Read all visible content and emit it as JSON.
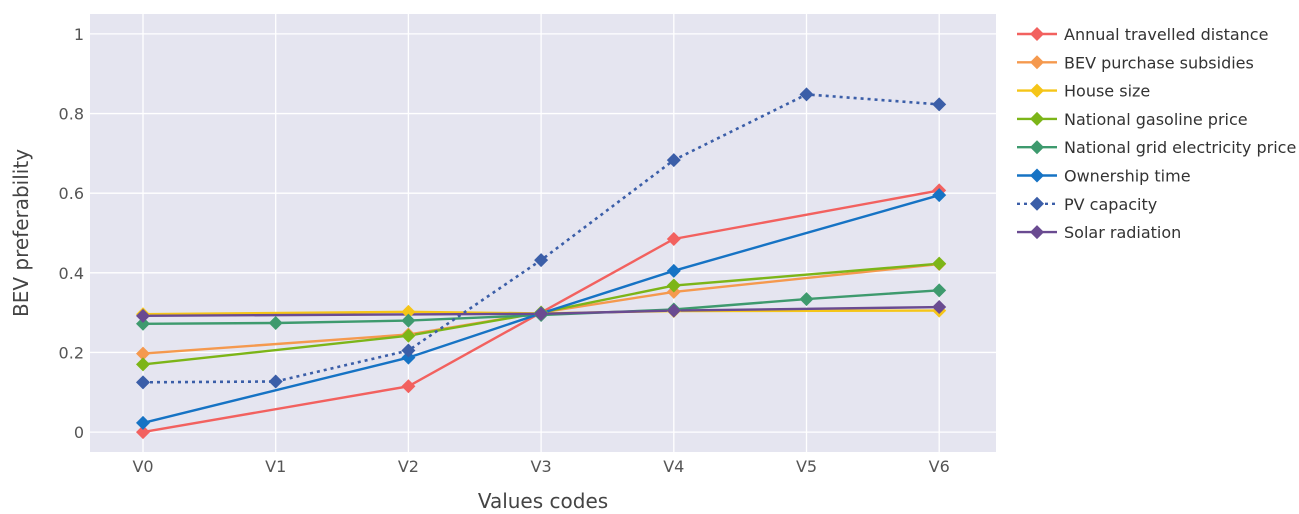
{
  "chart_data": {
    "type": "line",
    "xlabel": "Values codes",
    "ylabel": "BEV preferability",
    "categories": [
      "V0",
      "V1",
      "V2",
      "V3",
      "V4",
      "V5",
      "V6"
    ],
    "ylim": [
      -0.05,
      1.05
    ],
    "yticks": [
      0,
      0.2,
      0.4,
      0.6,
      0.8,
      1
    ],
    "ytick_labels": [
      "0",
      "0.2",
      "0.4",
      "0.6",
      "0.8",
      "1"
    ],
    "grid": true,
    "legend_position": "right",
    "series": [
      {
        "name": "Annual travelled distance",
        "color": "#f2615f",
        "dashed": false,
        "points": [
          [
            0,
            0.0
          ],
          [
            2,
            0.115
          ],
          [
            3,
            0.3
          ],
          [
            4,
            0.485
          ],
          [
            6,
            0.607
          ]
        ]
      },
      {
        "name": "BEV purchase subsidies",
        "color": "#f5994e",
        "dashed": false,
        "points": [
          [
            0,
            0.197
          ],
          [
            2,
            0.245
          ],
          [
            3,
            0.3
          ],
          [
            4,
            0.352
          ],
          [
            6,
            0.422
          ]
        ]
      },
      {
        "name": "House size",
        "color": "#f5c518",
        "dashed": false,
        "points": [
          [
            0,
            0.296
          ],
          [
            2,
            0.302
          ],
          [
            3,
            0.298
          ],
          [
            4,
            0.304
          ],
          [
            6,
            0.305
          ]
        ]
      },
      {
        "name": "National gasoline price",
        "color": "#7cb518",
        "dashed": false,
        "points": [
          [
            0,
            0.17
          ],
          [
            2,
            0.242
          ],
          [
            3,
            0.3
          ],
          [
            4,
            0.368
          ],
          [
            6,
            0.423
          ]
        ]
      },
      {
        "name": "National grid electricity price",
        "color": "#3e9a6e",
        "dashed": false,
        "points": [
          [
            0,
            0.272
          ],
          [
            1,
            0.274
          ],
          [
            2,
            0.28
          ],
          [
            3,
            0.294
          ],
          [
            4,
            0.308
          ],
          [
            5,
            0.334
          ],
          [
            6,
            0.356
          ]
        ]
      },
      {
        "name": "Ownership time",
        "color": "#1673c4",
        "dashed": false,
        "points": [
          [
            0,
            0.023
          ],
          [
            2,
            0.187
          ],
          [
            3,
            0.298
          ],
          [
            4,
            0.405
          ],
          [
            6,
            0.595
          ]
        ]
      },
      {
        "name": "PV capacity",
        "color": "#3b5ea8",
        "dashed": true,
        "points": [
          [
            0,
            0.125
          ],
          [
            1,
            0.127
          ],
          [
            2,
            0.205
          ],
          [
            3,
            0.432
          ],
          [
            4,
            0.683
          ],
          [
            5,
            0.848
          ],
          [
            6,
            0.823
          ]
        ]
      },
      {
        "name": "Solar radiation",
        "color": "#6a4b91",
        "dashed": false,
        "points": [
          [
            0,
            0.292
          ],
          [
            3,
            0.297
          ],
          [
            4,
            0.305
          ],
          [
            6,
            0.314
          ]
        ]
      }
    ]
  }
}
